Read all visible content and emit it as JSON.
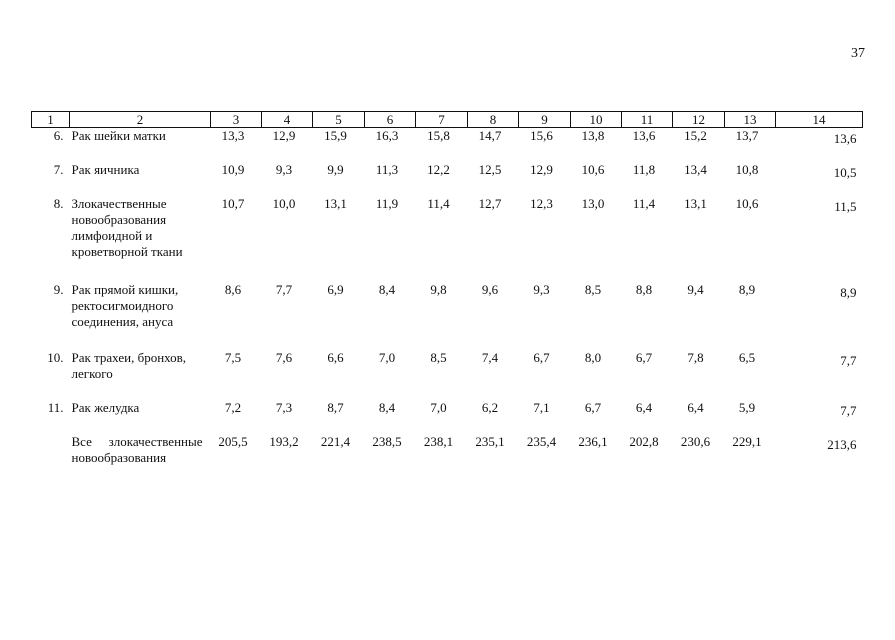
{
  "page_number": "37",
  "table": {
    "headers": [
      "1",
      "2",
      "3",
      "4",
      "5",
      "6",
      "7",
      "8",
      "9",
      "10",
      "11",
      "12",
      "13",
      "14"
    ],
    "rows": [
      {
        "index": "6.",
        "name": "Рак шейки матки",
        "values": [
          "13,3",
          "12,9",
          "15,9",
          "16,3",
          "15,8",
          "14,7",
          "15,6",
          "13,8",
          "13,6",
          "15,2",
          "13,7",
          "13,6"
        ]
      },
      {
        "index": "7.",
        "name": "Рак яичника",
        "values": [
          "10,9",
          "9,3",
          "9,9",
          "11,3",
          "12,2",
          "12,5",
          "12,9",
          "10,6",
          "11,8",
          "13,4",
          "10,8",
          "10,5"
        ]
      },
      {
        "index": "8.",
        "name": "Злокачественные новообразования лимфоидной и кроветворной ткани",
        "values": [
          "10,7",
          "10,0",
          "13,1",
          "11,9",
          "11,4",
          "12,7",
          "12,3",
          "13,0",
          "11,4",
          "13,1",
          "10,6",
          "11,5"
        ]
      },
      {
        "index": "9.",
        "name": "Рак прямой кишки, ректосигмоидного соединения, ануса",
        "values": [
          "8,6",
          "7,7",
          "6,9",
          "8,4",
          "9,8",
          "9,6",
          "9,3",
          "8,5",
          "8,8",
          "9,4",
          "8,9",
          "8,9"
        ]
      },
      {
        "index": "10.",
        "name": "Рак трахеи, бронхов, легкого",
        "values": [
          "7,5",
          "7,6",
          "6,6",
          "7,0",
          "8,5",
          "7,4",
          "6,7",
          "8,0",
          "6,7",
          "7,8",
          "6,5",
          "7,7"
        ]
      },
      {
        "index": "11.",
        "name": "Рак желудка",
        "values": [
          "7,2",
          "7,3",
          "8,7",
          "8,4",
          "7,0",
          "6,2",
          "7,1",
          "6,7",
          "6,4",
          "6,4",
          "5,9",
          "7,7"
        ]
      },
      {
        "index": "",
        "name": "Все злокачественные новообразования",
        "values": [
          "205,5",
          "193,2",
          "221,4",
          "238,5",
          "238,1",
          "235,1",
          "235,4",
          "236,1",
          "202,8",
          "230,6",
          "229,1",
          "213,6"
        ]
      }
    ]
  }
}
